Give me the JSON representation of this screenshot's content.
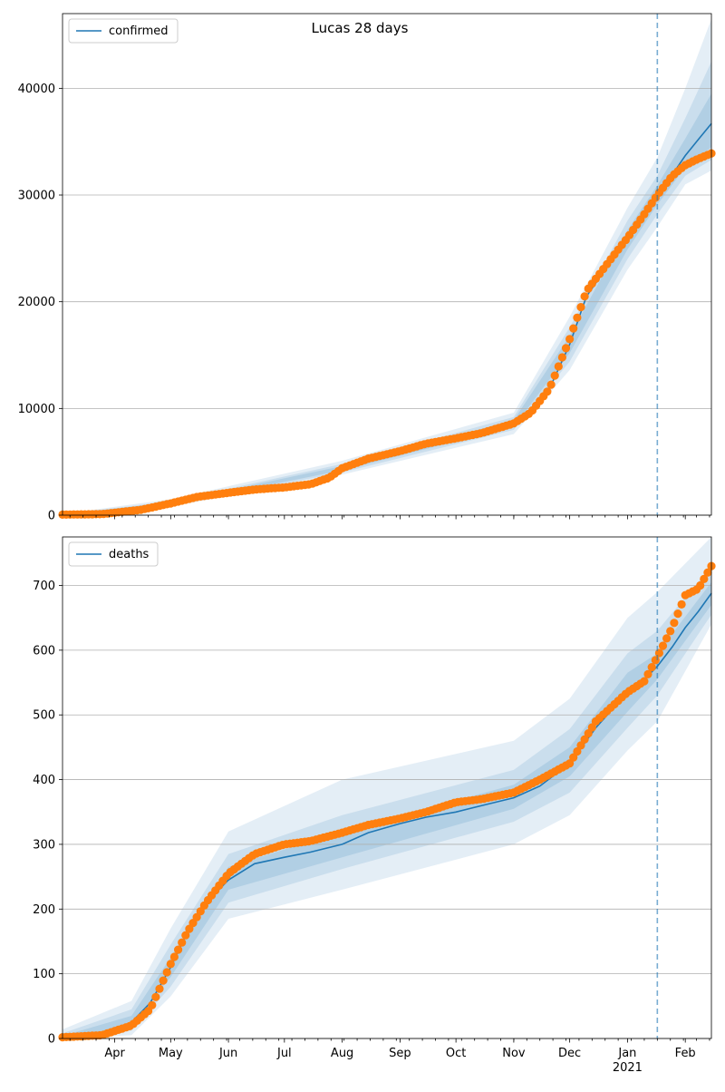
{
  "chart_data": [
    {
      "type": "line",
      "title": "Lucas 28 days",
      "xlabel": "",
      "ylabel": "",
      "x_start": "2020-03-04",
      "x_end": "2021-02-15",
      "forecast_start": "2021-01-17",
      "ylim": [
        0,
        47000
      ],
      "yticks": [
        0,
        10000,
        20000,
        30000,
        40000
      ],
      "grid": "y",
      "legend": {
        "position": "top-left",
        "entries": [
          "confirmed"
        ]
      },
      "series": [
        {
          "name": "confirmed",
          "kind": "model-median",
          "x": [
            "2020-03-04",
            "2020-03-25",
            "2020-04-15",
            "2020-05-01",
            "2020-05-15",
            "2020-06-01",
            "2020-06-15",
            "2020-07-01",
            "2020-07-15",
            "2020-07-25",
            "2020-08-01",
            "2020-08-15",
            "2020-09-01",
            "2020-09-15",
            "2020-10-01",
            "2020-10-15",
            "2020-11-01",
            "2020-11-10",
            "2020-11-20",
            "2020-12-01",
            "2020-12-10",
            "2020-12-20",
            "2021-01-01",
            "2021-01-10",
            "2021-01-17",
            "2021-01-25",
            "2021-02-01",
            "2021-02-08",
            "2021-02-15"
          ],
          "values": [
            50,
            100,
            500,
            1100,
            1700,
            2100,
            2400,
            2600,
            2900,
            3500,
            4400,
            5300,
            6000,
            6700,
            7200,
            7700,
            8600,
            9600,
            11800,
            16000,
            20500,
            23000,
            25800,
            28000,
            30000,
            31900,
            33700,
            35200,
            36700
          ]
        },
        {
          "name": "",
          "kind": "observed",
          "x": [
            "2020-03-04",
            "2020-03-25",
            "2020-04-15",
            "2020-05-01",
            "2020-05-15",
            "2020-06-01",
            "2020-06-15",
            "2020-07-01",
            "2020-07-15",
            "2020-07-25",
            "2020-08-01",
            "2020-08-15",
            "2020-09-01",
            "2020-09-15",
            "2020-10-01",
            "2020-10-15",
            "2020-11-01",
            "2020-11-10",
            "2020-11-20",
            "2020-12-01",
            "2020-12-10",
            "2020-12-20",
            "2021-01-01",
            "2021-01-10",
            "2021-01-17",
            "2021-01-25",
            "2021-02-01",
            "2021-02-08",
            "2021-02-15"
          ],
          "values": [
            50,
            100,
            500,
            1100,
            1700,
            2100,
            2400,
            2600,
            2900,
            3500,
            4400,
            5300,
            6000,
            6700,
            7200,
            7700,
            8600,
            9600,
            11800,
            16500,
            21000,
            23300,
            26000,
            28200,
            30000,
            31800,
            32800,
            33400,
            33900
          ]
        }
      ],
      "bands": {
        "x": [
          "2020-03-04",
          "2020-05-01",
          "2020-08-01",
          "2020-11-01",
          "2020-12-01",
          "2021-01-01",
          "2021-01-17",
          "2021-02-01",
          "2021-02-15"
        ],
        "inner_upper": [
          60,
          1200,
          4600,
          8900,
          16800,
          26700,
          30900,
          35300,
          39500
        ],
        "inner_lower": [
          40,
          1000,
          4200,
          8300,
          15200,
          24900,
          29100,
          32600,
          34500
        ],
        "mid_upper": [
          80,
          1300,
          4800,
          9200,
          17600,
          27600,
          31800,
          37200,
          42500
        ],
        "mid_lower": [
          20,
          900,
          4000,
          8000,
          14400,
          24000,
          28200,
          31800,
          33300
        ],
        "outer_upper": [
          120,
          1500,
          5100,
          9600,
          18600,
          28800,
          33500,
          40000,
          46500
        ],
        "outer_lower": [
          10,
          800,
          3800,
          7600,
          13600,
          23000,
          27000,
          31000,
          32300
        ]
      }
    },
    {
      "type": "line",
      "title": "",
      "xlabel": "",
      "ylabel": "",
      "x_start": "2020-03-04",
      "x_end": "2021-02-15",
      "forecast_start": "2021-01-17",
      "ylim": [
        0,
        775
      ],
      "yticks": [
        0,
        100,
        200,
        300,
        400,
        500,
        600,
        700
      ],
      "xticks_major": [
        "Apr",
        "May",
        "Jun",
        "Jul",
        "Aug",
        "Sep",
        "Oct",
        "Nov",
        "Dec",
        "Jan",
        "Feb"
      ],
      "xtick_year_label": "2021",
      "grid": "y",
      "legend": {
        "position": "top-left",
        "entries": [
          "deaths"
        ]
      },
      "series": [
        {
          "name": "deaths",
          "kind": "model-median",
          "x": [
            "2020-03-04",
            "2020-03-25",
            "2020-04-10",
            "2020-04-20",
            "2020-05-01",
            "2020-05-10",
            "2020-05-20",
            "2020-06-01",
            "2020-06-15",
            "2020-07-01",
            "2020-07-15",
            "2020-08-01",
            "2020-08-15",
            "2020-09-01",
            "2020-09-15",
            "2020-10-01",
            "2020-10-15",
            "2020-11-01",
            "2020-11-15",
            "2020-12-01",
            "2020-12-15",
            "2021-01-01",
            "2021-01-10",
            "2021-01-17",
            "2021-01-25",
            "2021-02-01",
            "2021-02-08",
            "2021-02-15"
          ],
          "values": [
            2,
            5,
            25,
            55,
            110,
            165,
            210,
            245,
            270,
            280,
            288,
            300,
            318,
            332,
            342,
            350,
            360,
            372,
            390,
            425,
            480,
            535,
            555,
            575,
            605,
            635,
            660,
            688
          ]
        },
        {
          "name": "",
          "kind": "observed",
          "x": [
            "2020-03-04",
            "2020-03-25",
            "2020-04-10",
            "2020-04-20",
            "2020-05-01",
            "2020-05-10",
            "2020-05-20",
            "2020-06-01",
            "2020-06-15",
            "2020-07-01",
            "2020-07-15",
            "2020-08-01",
            "2020-08-15",
            "2020-09-01",
            "2020-09-15",
            "2020-10-01",
            "2020-10-15",
            "2020-11-01",
            "2020-11-15",
            "2020-12-01",
            "2020-12-15",
            "2021-01-01",
            "2021-01-10",
            "2021-01-17",
            "2021-01-25",
            "2021-02-01",
            "2021-02-08",
            "2021-02-15"
          ],
          "values": [
            2,
            5,
            20,
            45,
            115,
            165,
            210,
            255,
            285,
            300,
            305,
            318,
            330,
            340,
            350,
            365,
            370,
            380,
            400,
            425,
            490,
            535,
            552,
            590,
            635,
            685,
            695,
            730
          ]
        }
      ],
      "bands": {
        "x": [
          "2020-03-04",
          "2020-04-10",
          "2020-05-01",
          "2020-06-01",
          "2020-08-01",
          "2020-11-01",
          "2020-12-01",
          "2021-01-01",
          "2021-01-17",
          "2021-02-15"
        ],
        "inner_upper": [
          4,
          35,
          125,
          265,
          320,
          392,
          450,
          565,
          595,
          705
        ],
        "inner_lower": [
          0,
          20,
          95,
          230,
          280,
          355,
          405,
          505,
          555,
          670
        ],
        "mid_upper": [
          8,
          45,
          145,
          285,
          345,
          415,
          478,
          595,
          630,
          730
        ],
        "mid_lower": [
          0,
          12,
          80,
          210,
          262,
          335,
          380,
          480,
          530,
          655
        ],
        "outer_upper": [
          14,
          58,
          170,
          320,
          400,
          460,
          525,
          650,
          690,
          775
        ],
        "outer_lower": [
          0,
          5,
          65,
          185,
          230,
          300,
          345,
          445,
          490,
          640
        ]
      }
    }
  ]
}
